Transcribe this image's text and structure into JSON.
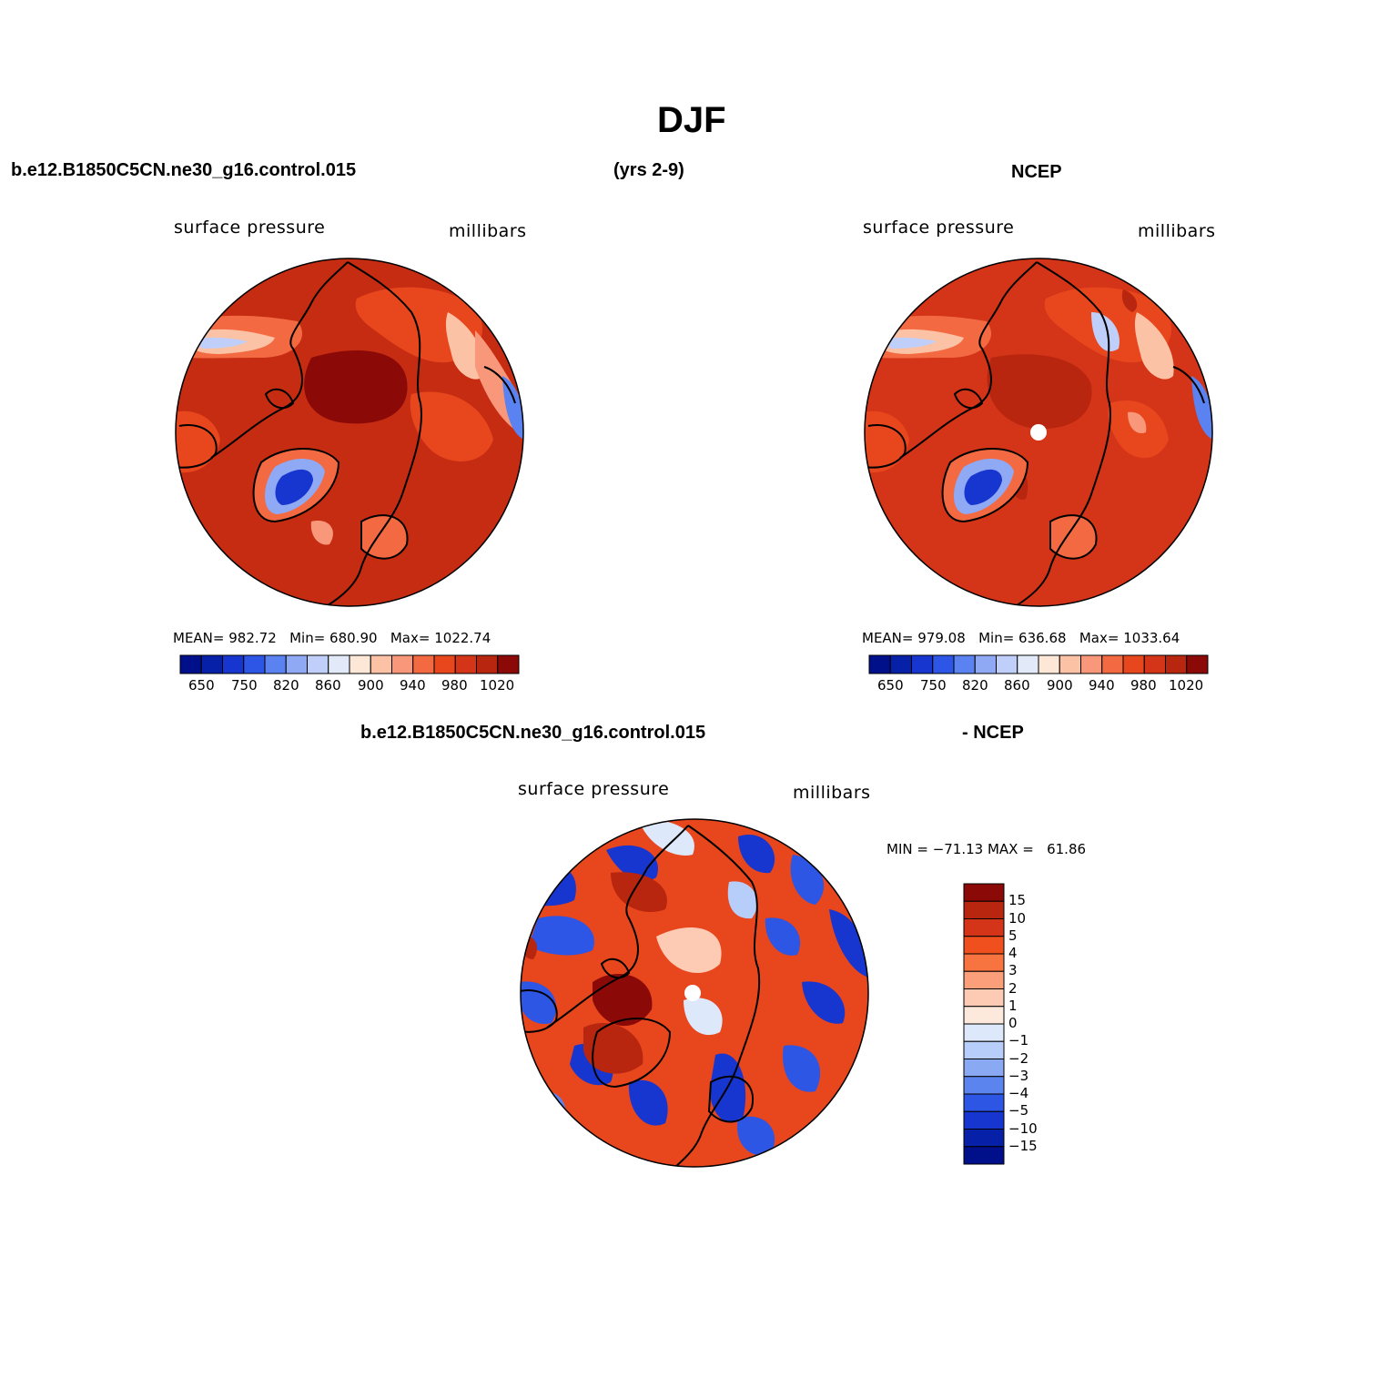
{
  "main_title": "DJF",
  "header": {
    "case_name": "b.e12.B1850C5CN.ne30_g16.control.015",
    "years": "(yrs 2-9)",
    "obs_name": "NCEP"
  },
  "panels": {
    "model": {
      "left_label": "surface pressure",
      "right_label": "millibars",
      "mean_label": "MEAN=",
      "mean": "982.72",
      "min_label": "Min=",
      "min": "680.90",
      "max_label": "Max=",
      "max": "1022.74"
    },
    "obs": {
      "left_label": "surface pressure",
      "right_label": "millibars",
      "mean_label": "MEAN=",
      "mean": "979.08",
      "min_label": "Min=",
      "min": "636.68",
      "max_label": "Max=",
      "max": "1033.64"
    },
    "diff": {
      "title_left": "b.e12.B1850C5CN.ne30_g16.control.015",
      "title_right": "- NCEP",
      "left_label": "surface pressure",
      "right_label": "millibars",
      "minmax_text": "MIN = −71.13 MAX =   61.86"
    }
  },
  "abs_colorbar": {
    "colors": [
      "#000f8a",
      "#0621a8",
      "#1736cf",
      "#2d55e6",
      "#5a82f0",
      "#8fa9f5",
      "#bfcffa",
      "#e2eaf9",
      "#fde8d8",
      "#fbc2a6",
      "#f9977a",
      "#f36a42",
      "#e8461d",
      "#d43417",
      "#b8260f",
      "#8b0a07"
    ],
    "labels": [
      "650",
      "750",
      "820",
      "860",
      "900",
      "940",
      "980",
      "1020"
    ]
  },
  "diff_colorbar": {
    "colors": [
      "#8b0a07",
      "#b8260f",
      "#d43417",
      "#f0501d",
      "#f7733f",
      "#fa9f7a",
      "#fdcab4",
      "#fde9dc",
      "#dde8fb",
      "#b7cdfa",
      "#8aa9f3",
      "#5b84ef",
      "#2e56e4",
      "#1736cf",
      "#0621a8",
      "#000f8a"
    ],
    "labels": [
      "15",
      "10",
      "5",
      "4",
      "3",
      "2",
      "1",
      "0",
      "−1",
      "−2",
      "−3",
      "−4",
      "−5",
      "−10",
      "−15"
    ]
  }
}
